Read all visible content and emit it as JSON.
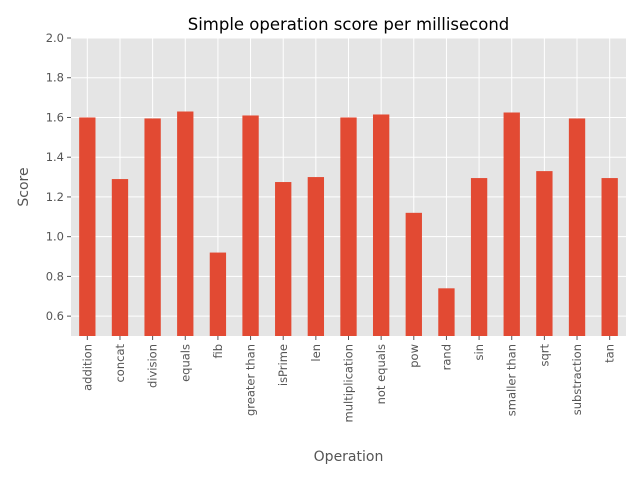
{
  "chart_data": {
    "type": "bar",
    "title": "Simple operation score per millisecond",
    "xlabel": "Operation",
    "ylabel": "Score",
    "ylim": [
      0.5,
      2.0
    ],
    "yticks": [
      "0.6",
      "0.8",
      "1.0",
      "1.2",
      "1.4",
      "1.6",
      "1.8",
      "2.0"
    ],
    "grid": true,
    "legend": "none",
    "categories": [
      "addition",
      "concat",
      "division",
      "equals",
      "fib",
      "greater than",
      "isPrime",
      "len",
      "multiplication",
      "not equals",
      "pow",
      "rand",
      "sin",
      "smaller than",
      "sqrt",
      "substraction",
      "tan"
    ],
    "values": [
      1.6,
      1.29,
      1.595,
      1.63,
      0.92,
      1.61,
      1.275,
      1.3,
      1.6,
      1.615,
      1.12,
      0.74,
      1.295,
      1.625,
      1.33,
      1.595,
      1.295
    ],
    "colors": {
      "bar": "#E24A33",
      "plot_bg": "#E5E5E5",
      "grid": "#FFFFFF",
      "tick_text": "#555555",
      "label_text": "#555555",
      "title_text": "#000000"
    }
  }
}
